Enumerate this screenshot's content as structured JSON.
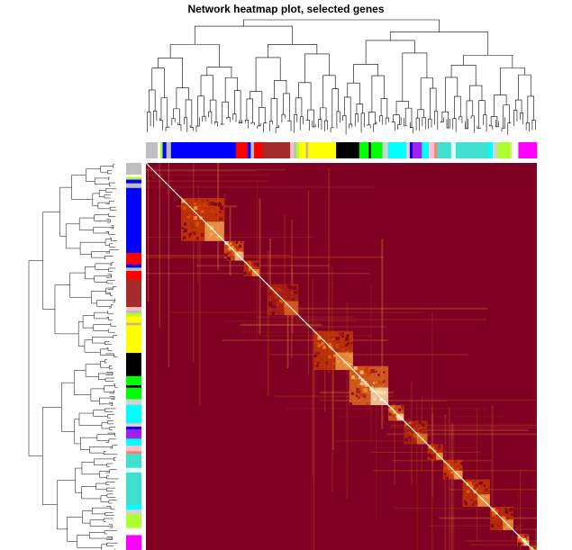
{
  "chart_data": {
    "type": "heatmap",
    "title": "Network heatmap plot, selected genes",
    "xlabel": "",
    "ylabel": "",
    "module_colors": [
      {
        "name": "grey",
        "hex": "#bebebe",
        "frac": 0.025
      },
      {
        "name": "lightyellow",
        "hex": "#ffffe0",
        "frac": 0.006
      },
      {
        "name": "greenyellow",
        "hex": "#adff2f",
        "frac": 0.005
      },
      {
        "name": "blue",
        "hex": "#0000ff",
        "frac": 0.008
      },
      {
        "name": "grey",
        "hex": "#bebebe",
        "frac": 0.01
      },
      {
        "name": "blue",
        "hex": "#0000ff",
        "frac": 0.14
      },
      {
        "name": "red",
        "hex": "#ff0000",
        "frac": 0.025
      },
      {
        "name": "blue",
        "hex": "#0000ff",
        "frac": 0.007
      },
      {
        "name": "grey",
        "hex": "#bebebe",
        "frac": 0.007
      },
      {
        "name": "red",
        "hex": "#ff0000",
        "frac": 0.018
      },
      {
        "name": "brown",
        "hex": "#a52a2a",
        "frac": 0.06
      },
      {
        "name": "pink",
        "hex": "#ffc0cb",
        "frac": 0.007
      },
      {
        "name": "grey",
        "hex": "#bebebe",
        "frac": 0.006
      },
      {
        "name": "greenyellow",
        "hex": "#adff2f",
        "frac": 0.006
      },
      {
        "name": "yellow",
        "hex": "#ffff00",
        "frac": 0.015
      },
      {
        "name": "tan",
        "hex": "#d2b48c",
        "frac": 0.005
      },
      {
        "name": "yellow",
        "hex": "#ffff00",
        "frac": 0.06
      },
      {
        "name": "black",
        "hex": "#000000",
        "frac": 0.05
      },
      {
        "name": "green",
        "hex": "#00ff00",
        "frac": 0.02
      },
      {
        "name": "black",
        "hex": "#000000",
        "frac": 0.005
      },
      {
        "name": "green",
        "hex": "#00ff00",
        "frac": 0.025
      },
      {
        "name": "lightgrey",
        "hex": "#d3d3d3",
        "frac": 0.012
      },
      {
        "name": "cyan",
        "hex": "#00ffff",
        "frac": 0.04
      },
      {
        "name": "pink",
        "hex": "#ffc0cb",
        "frac": 0.007
      },
      {
        "name": "blue",
        "hex": "#0000ff",
        "frac": 0.006
      },
      {
        "name": "purple",
        "hex": "#a020f0",
        "frac": 0.02
      },
      {
        "name": "cyan",
        "hex": "#00ffff",
        "frac": 0.015
      },
      {
        "name": "pink",
        "hex": "#ffc0cb",
        "frac": 0.012
      },
      {
        "name": "salmon",
        "hex": "#fa8072",
        "frac": 0.006
      },
      {
        "name": "turquoise",
        "hex": "#40e0d0",
        "frac": 0.03
      },
      {
        "name": "lightcyan",
        "hex": "#e0ffff",
        "frac": 0.01
      },
      {
        "name": "turquoise",
        "hex": "#40e0d0",
        "frac": 0.07
      },
      {
        "name": "cyan",
        "hex": "#00ffff",
        "frac": 0.01
      },
      {
        "name": "lightgrey",
        "hex": "#d3d3d3",
        "frac": 0.01
      },
      {
        "name": "greenyellow",
        "hex": "#adff2f",
        "frac": 0.03
      },
      {
        "name": "white",
        "hex": "#ffffff",
        "frac": 0.015
      },
      {
        "name": "magenta",
        "hex": "#ff00ff",
        "frac": 0.04
      }
    ],
    "tom_blocks": [
      {
        "start": 0.09,
        "end": 0.2,
        "strength": 0.6
      },
      {
        "start": 0.2,
        "end": 0.25,
        "strength": 0.75
      },
      {
        "start": 0.25,
        "end": 0.29,
        "strength": 0.5
      },
      {
        "start": 0.31,
        "end": 0.39,
        "strength": 0.35
      },
      {
        "start": 0.43,
        "end": 0.53,
        "strength": 0.55
      },
      {
        "start": 0.52,
        "end": 0.62,
        "strength": 0.85
      },
      {
        "start": 0.62,
        "end": 0.66,
        "strength": 0.8
      },
      {
        "start": 0.66,
        "end": 0.72,
        "strength": 0.4
      },
      {
        "start": 0.72,
        "end": 0.76,
        "strength": 0.5
      },
      {
        "start": 0.76,
        "end": 0.81,
        "strength": 0.6
      },
      {
        "start": 0.81,
        "end": 0.88,
        "strength": 0.55
      },
      {
        "start": 0.88,
        "end": 0.94,
        "strength": 0.5
      },
      {
        "start": 0.95,
        "end": 0.98,
        "strength": 0.9
      },
      {
        "start": 0.98,
        "end": 1.0,
        "strength": 0.95
      }
    ],
    "color_scale": [
      "#7f0022",
      "#d24400",
      "#ffb84d",
      "#fffde6"
    ],
    "grid": false,
    "legend": "none"
  }
}
